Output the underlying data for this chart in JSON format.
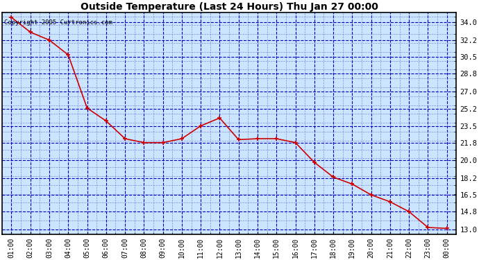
{
  "title": "Outside Temperature (Last 24 Hours) Thu Jan 27 00:00",
  "copyright": "Copyright 2005 Curtronics.com",
  "x_labels": [
    "01:00",
    "02:00",
    "03:00",
    "04:00",
    "05:00",
    "06:00",
    "07:00",
    "08:00",
    "09:00",
    "10:00",
    "11:00",
    "12:00",
    "13:00",
    "14:00",
    "15:00",
    "16:00",
    "17:00",
    "18:00",
    "19:00",
    "20:00",
    "21:00",
    "22:00",
    "23:00",
    "00:00"
  ],
  "y_values": [
    34.5,
    33.0,
    32.2,
    30.7,
    25.3,
    24.0,
    22.2,
    21.8,
    21.8,
    22.2,
    23.5,
    24.3,
    22.1,
    22.2,
    22.2,
    21.8,
    19.8,
    18.3,
    17.6,
    16.5,
    15.8,
    14.8,
    13.2,
    13.1
  ],
  "yticks": [
    13.0,
    14.8,
    16.5,
    18.2,
    20.0,
    21.8,
    23.5,
    25.2,
    27.0,
    28.8,
    30.5,
    32.2,
    34.0
  ],
  "ylim": [
    12.5,
    35.0
  ],
  "outer_bg_color": "#ffffff",
  "plot_bg_color": "#cce5ff",
  "line_color": "#cc0000",
  "marker_color": "#cc0000",
  "grid_color_major": "#0000bb",
  "grid_color_minor": "#6666cc",
  "title_color": "#000000",
  "border_color": "#000000",
  "figsize": [
    6.9,
    3.75
  ],
  "dpi": 100
}
